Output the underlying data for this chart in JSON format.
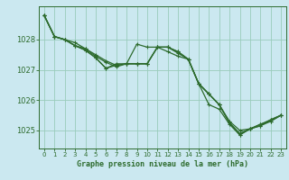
{
  "xlabel": "Graphe pression niveau de la mer (hPa)",
  "background_color": "#cbe8f0",
  "grid_color": "#99ccbb",
  "line_color": "#2d6b2d",
  "ylim": [
    1024.4,
    1029.1
  ],
  "xlim": [
    -0.5,
    23.5
  ],
  "yticks": [
    1025,
    1026,
    1027,
    1028
  ],
  "xticks": [
    0,
    1,
    2,
    3,
    4,
    5,
    6,
    7,
    8,
    9,
    10,
    11,
    12,
    13,
    14,
    15,
    16,
    17,
    18,
    19,
    20,
    21,
    22,
    23
  ],
  "series": [
    [
      1028.8,
      1028.1,
      1028.0,
      1027.8,
      1027.7,
      1027.5,
      1027.3,
      1027.15,
      1027.2,
      1027.2,
      1027.2,
      1027.75,
      1027.75,
      1027.6,
      1027.35,
      1026.55,
      1026.2,
      1025.85,
      1025.25,
      1024.85,
      1025.05,
      1025.15,
      1025.3,
      1025.5
    ],
    [
      1028.8,
      1028.1,
      1028.0,
      1027.8,
      1027.65,
      1027.4,
      1027.05,
      1027.2,
      1027.2,
      1027.85,
      1027.75,
      1027.75,
      1027.6,
      1027.45,
      1027.35,
      1026.55,
      1025.85,
      1025.7,
      1025.2,
      1024.85,
      1025.05,
      1025.2,
      1025.35,
      1025.5
    ],
    [
      1028.8,
      1028.1,
      1028.0,
      1027.9,
      1027.7,
      1027.45,
      1027.25,
      1027.1,
      1027.2,
      1027.2,
      1027.2,
      1027.75,
      1027.75,
      1027.6,
      1027.35,
      1026.55,
      1026.2,
      1025.85,
      1025.3,
      1025.0,
      1025.05,
      1025.2,
      1025.3,
      1025.5
    ],
    [
      1028.8,
      1028.1,
      1028.0,
      1027.8,
      1027.65,
      1027.4,
      1027.05,
      1027.15,
      1027.2,
      1027.2,
      1027.2,
      1027.75,
      1027.75,
      1027.55,
      1027.35,
      1026.55,
      1026.2,
      1025.85,
      1025.25,
      1024.9,
      1025.05,
      1025.15,
      1025.35,
      1025.5
    ]
  ]
}
